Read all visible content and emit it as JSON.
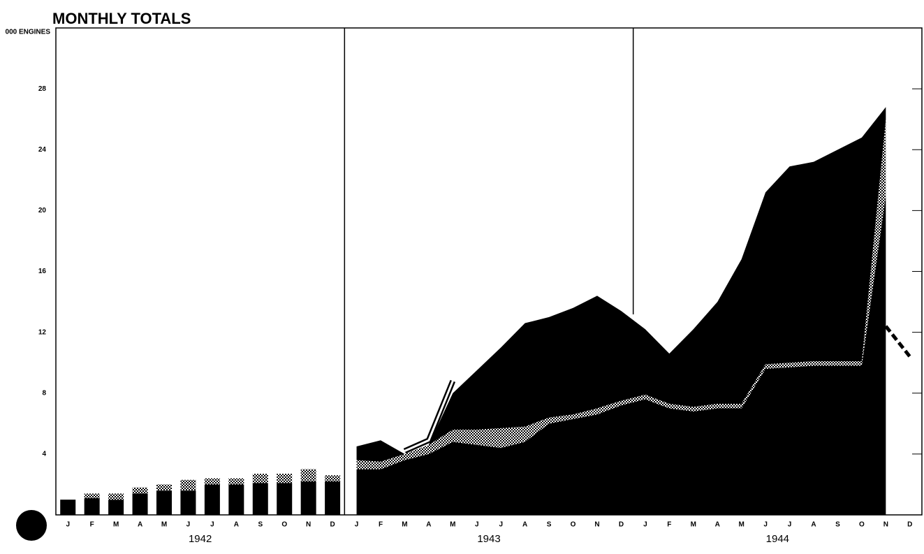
{
  "chart_data": [
    {
      "type": "bar",
      "title": "MONTHLY TOTALS",
      "y_label": "000 ENGINES",
      "x_label": "1942",
      "categories": [
        "J",
        "F",
        "M",
        "A",
        "M",
        "J",
        "J",
        "A",
        "S",
        "O",
        "N",
        "D"
      ],
      "series": [
        {
          "color": "#000000",
          "values": [
            1.0,
            1.1,
            1.0,
            1.4,
            1.6,
            1.6,
            2.0,
            2.0,
            2.1,
            2.1,
            2.2,
            2.2
          ]
        },
        {
          "color": "#000000",
          "pattern": "crosshatch",
          "values": [
            0,
            0.3,
            0.4,
            0.4,
            0.4,
            0.7,
            0.4,
            0.4,
            0.6,
            0.6,
            0.8,
            0.4
          ]
        }
      ],
      "ylim": [
        0,
        32
      ],
      "yticks": [
        4,
        8,
        12,
        16,
        20,
        24,
        28
      ]
    },
    {
      "type": "area",
      "x_labels": [
        "1943",
        "1944"
      ],
      "categories": [
        "J",
        "F",
        "M",
        "A",
        "M",
        "J",
        "J",
        "A",
        "S",
        "O",
        "N",
        "D",
        "J",
        "F",
        "M",
        "A",
        "M",
        "J",
        "J",
        "A",
        "S",
        "O",
        "N",
        "D"
      ],
      "series": [
        {
          "style": "area",
          "color": "#000000",
          "values": [
            3.0,
            3.0,
            3.6,
            4.0,
            4.8,
            4.6,
            4.4,
            4.8,
            6.0,
            6.3,
            6.6,
            7.2,
            7.6,
            7.0,
            6.8,
            7.0,
            7.0,
            9.6,
            9.7,
            9.8,
            9.8,
            9.8,
            21.0,
            null
          ]
        },
        {
          "style": "area",
          "color": "#000000",
          "pattern": "crosshatch",
          "values": [
            0.6,
            0.5,
            0.4,
            0.6,
            0.8,
            1.0,
            1.3,
            1.0,
            0.4,
            0.3,
            0.4,
            0.3,
            0.3,
            0.3,
            0.3,
            0.3,
            0.3,
            0.3,
            0.3,
            0.3,
            0.3,
            0.3,
            5.0,
            null
          ]
        },
        {
          "style": "area",
          "color": "#000000",
          "values": [
            0.9,
            1.4,
            0.0,
            0.0,
            2.4,
            3.9,
            5.3,
            6.8,
            6.6,
            7.0,
            7.4,
            5.9,
            4.3,
            3.3,
            5.1,
            6.7,
            9.5,
            11.3,
            12.9,
            13.1,
            13.9,
            14.7,
            0.8,
            null
          ]
        },
        {
          "style": "line",
          "color": "#ffffff",
          "values": [
            null,
            null,
            4.2,
            4.9,
            8.8,
            null,
            null,
            null,
            null,
            null,
            null,
            null,
            null,
            null,
            null,
            null,
            null,
            null,
            null,
            null,
            null,
            null,
            null,
            null
          ]
        },
        {
          "style": "dashed",
          "color": "#000000",
          "values": [
            null,
            null,
            null,
            null,
            null,
            null,
            null,
            null,
            null,
            null,
            null,
            null,
            null,
            null,
            null,
            null,
            null,
            null,
            null,
            null,
            null,
            null,
            12.4,
            10.4
          ]
        }
      ],
      "ylim": [
        0,
        32
      ]
    }
  ]
}
